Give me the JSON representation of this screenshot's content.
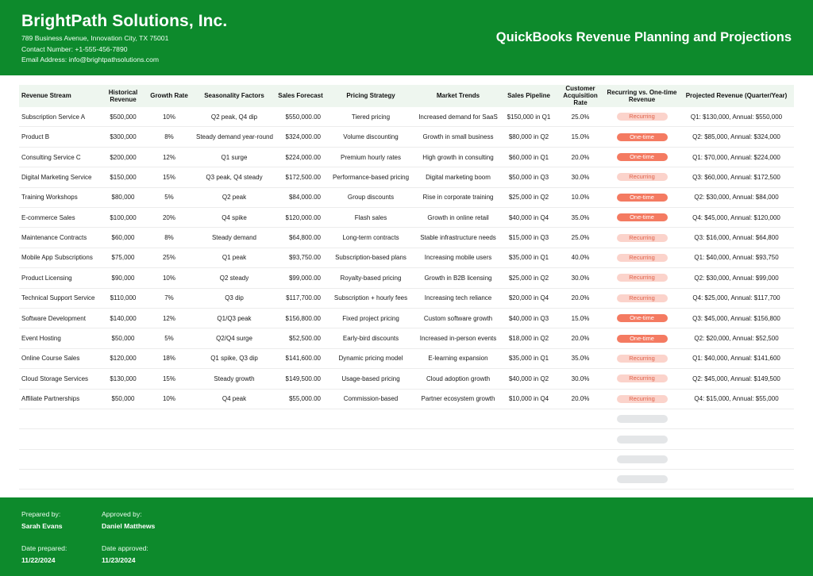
{
  "header": {
    "company": "BrightPath Solutions, Inc.",
    "address": "789 Business Avenue, Innovation City, TX 75001",
    "contact": "Contact Number: +1-555-456-7890",
    "email": "Email Address: info@brightpathsolutions.com",
    "title": "QuickBooks Revenue Planning and Projections"
  },
  "table": {
    "columns": [
      "Revenue Stream",
      "Historical Revenue",
      "Growth Rate",
      "Seasonality Factors",
      "Sales Forecast",
      "Pricing Strategy",
      "Market Trends",
      "Sales Pipeline",
      "Customer Acquisition Rate",
      "Recurring vs. One-time Revenue",
      "Projected Revenue (Quarter/Year)"
    ],
    "rows": [
      {
        "stream": "Subscription Service A",
        "historical": "$500,000",
        "growth": "10%",
        "seasonality": "Q2 peak, Q4 dip",
        "forecast": "$550,000.00",
        "pricing": "Tiered pricing",
        "trends": "Increased demand for SaaS",
        "pipeline": "$150,000 in Q1",
        "acquisition": "25.0%",
        "type": "Recurring",
        "projected": "Q1: $130,000, Annual: $550,000"
      },
      {
        "stream": "Product B",
        "historical": "$300,000",
        "growth": "8%",
        "seasonality": "Steady demand year-round",
        "forecast": "$324,000.00",
        "pricing": "Volume discounting",
        "trends": "Growth in small business",
        "pipeline": "$80,000 in Q2",
        "acquisition": "15.0%",
        "type": "One-time",
        "projected": "Q2: $85,000, Annual: $324,000"
      },
      {
        "stream": "Consulting Service C",
        "historical": "$200,000",
        "growth": "12%",
        "seasonality": "Q1 surge",
        "forecast": "$224,000.00",
        "pricing": "Premium hourly rates",
        "trends": "High growth in consulting",
        "pipeline": "$60,000 in Q1",
        "acquisition": "20.0%",
        "type": "One-time",
        "projected": "Q1: $70,000, Annual: $224,000"
      },
      {
        "stream": "Digital Marketing Service",
        "historical": "$150,000",
        "growth": "15%",
        "seasonality": "Q3 peak, Q4 steady",
        "forecast": "$172,500.00",
        "pricing": "Performance-based pricing",
        "trends": "Digital marketing boom",
        "pipeline": "$50,000 in Q3",
        "acquisition": "30.0%",
        "type": "Recurring",
        "projected": "Q3: $60,000, Annual: $172,500"
      },
      {
        "stream": "Training Workshops",
        "historical": "$80,000",
        "growth": "5%",
        "seasonality": "Q2 peak",
        "forecast": "$84,000.00",
        "pricing": "Group discounts",
        "trends": "Rise in corporate training",
        "pipeline": "$25,000 in Q2",
        "acquisition": "10.0%",
        "type": "One-time",
        "projected": "Q2: $30,000, Annual: $84,000"
      },
      {
        "stream": "E-commerce Sales",
        "historical": "$100,000",
        "growth": "20%",
        "seasonality": "Q4 spike",
        "forecast": "$120,000.00",
        "pricing": "Flash sales",
        "trends": "Growth in online retail",
        "pipeline": "$40,000 in Q4",
        "acquisition": "35.0%",
        "type": "One-time",
        "projected": "Q4: $45,000, Annual: $120,000"
      },
      {
        "stream": "Maintenance Contracts",
        "historical": "$60,000",
        "growth": "8%",
        "seasonality": "Steady demand",
        "forecast": "$64,800.00",
        "pricing": "Long-term contracts",
        "trends": "Stable infrastructure needs",
        "pipeline": "$15,000 in Q3",
        "acquisition": "25.0%",
        "type": "Recurring",
        "projected": "Q3: $16,000, Annual: $64,800"
      },
      {
        "stream": "Mobile App Subscriptions",
        "historical": "$75,000",
        "growth": "25%",
        "seasonality": "Q1 peak",
        "forecast": "$93,750.00",
        "pricing": "Subscription-based plans",
        "trends": "Increasing mobile users",
        "pipeline": "$35,000 in Q1",
        "acquisition": "40.0%",
        "type": "Recurring",
        "projected": "Q1: $40,000, Annual: $93,750"
      },
      {
        "stream": "Product Licensing",
        "historical": "$90,000",
        "growth": "10%",
        "seasonality": "Q2 steady",
        "forecast": "$99,000.00",
        "pricing": "Royalty-based pricing",
        "trends": "Growth in B2B licensing",
        "pipeline": "$25,000 in Q2",
        "acquisition": "30.0%",
        "type": "Recurring",
        "projected": "Q2: $30,000, Annual: $99,000"
      },
      {
        "stream": "Technical Support Service",
        "historical": "$110,000",
        "growth": "7%",
        "seasonality": "Q3 dip",
        "forecast": "$117,700.00",
        "pricing": "Subscription + hourly fees",
        "trends": "Increasing tech reliance",
        "pipeline": "$20,000 in Q4",
        "acquisition": "20.0%",
        "type": "Recurring",
        "projected": "Q4: $25,000, Annual: $117,700"
      },
      {
        "stream": "Software Development",
        "historical": "$140,000",
        "growth": "12%",
        "seasonality": "Q1/Q3 peak",
        "forecast": "$156,800.00",
        "pricing": "Fixed project pricing",
        "trends": "Custom software growth",
        "pipeline": "$40,000 in Q3",
        "acquisition": "15.0%",
        "type": "One-time",
        "projected": "Q3: $45,000, Annual: $156,800"
      },
      {
        "stream": "Event Hosting",
        "historical": "$50,000",
        "growth": "5%",
        "seasonality": "Q2/Q4 surge",
        "forecast": "$52,500.00",
        "pricing": "Early-bird discounts",
        "trends": "Increased in-person events",
        "pipeline": "$18,000 in Q2",
        "acquisition": "20.0%",
        "type": "One-time",
        "projected": "Q2: $20,000, Annual: $52,500"
      },
      {
        "stream": "Online Course Sales",
        "historical": "$120,000",
        "growth": "18%",
        "seasonality": "Q1 spike, Q3 dip",
        "forecast": "$141,600.00",
        "pricing": "Dynamic pricing model",
        "trends": "E-learning expansion",
        "pipeline": "$35,000 in Q1",
        "acquisition": "35.0%",
        "type": "Recurring",
        "projected": "Q1: $40,000, Annual: $141,600"
      },
      {
        "stream": "Cloud Storage Services",
        "historical": "$130,000",
        "growth": "15%",
        "seasonality": "Steady growth",
        "forecast": "$149,500.00",
        "pricing": "Usage-based pricing",
        "trends": "Cloud adoption growth",
        "pipeline": "$40,000 in Q2",
        "acquisition": "30.0%",
        "type": "Recurring",
        "projected": "Q2: $45,000, Annual: $149,500"
      },
      {
        "stream": "Affiliate Partnerships",
        "historical": "$50,000",
        "growth": "10%",
        "seasonality": "Q4 peak",
        "forecast": "$55,000.00",
        "pricing": "Commission-based",
        "trends": "Partner ecosystem growth",
        "pipeline": "$10,000 in Q4",
        "acquisition": "20.0%",
        "type": "Recurring",
        "projected": "Q4: $15,000, Annual: $55,000"
      },
      {
        "stream": "",
        "historical": "",
        "growth": "",
        "seasonality": "",
        "forecast": "",
        "pricing": "",
        "trends": "",
        "pipeline": "",
        "acquisition": "",
        "type": "",
        "projected": ""
      },
      {
        "stream": "",
        "historical": "",
        "growth": "",
        "seasonality": "",
        "forecast": "",
        "pricing": "",
        "trends": "",
        "pipeline": "",
        "acquisition": "",
        "type": "",
        "projected": ""
      },
      {
        "stream": "",
        "historical": "",
        "growth": "",
        "seasonality": "",
        "forecast": "",
        "pricing": "",
        "trends": "",
        "pipeline": "",
        "acquisition": "",
        "type": "",
        "projected": ""
      },
      {
        "stream": "",
        "historical": "",
        "growth": "",
        "seasonality": "",
        "forecast": "",
        "pricing": "",
        "trends": "",
        "pipeline": "",
        "acquisition": "",
        "type": "",
        "projected": ""
      }
    ]
  },
  "footer": {
    "prepared_label": "Prepared by:",
    "prepared_name": "Sarah Evans",
    "approved_label": "Approved by:",
    "approved_name": "Daniel Matthews",
    "date_prepared_label": "Date prepared:",
    "date_prepared": "11/22/2024",
    "date_approved_label": "Date approved:",
    "date_approved": "11/23/2024"
  },
  "colors": {
    "brand_green": "#0d8a2c",
    "recurring_pill": "#fbd3cb",
    "one_time_pill": "#f47a61",
    "empty_pill": "#e4e6e8"
  }
}
